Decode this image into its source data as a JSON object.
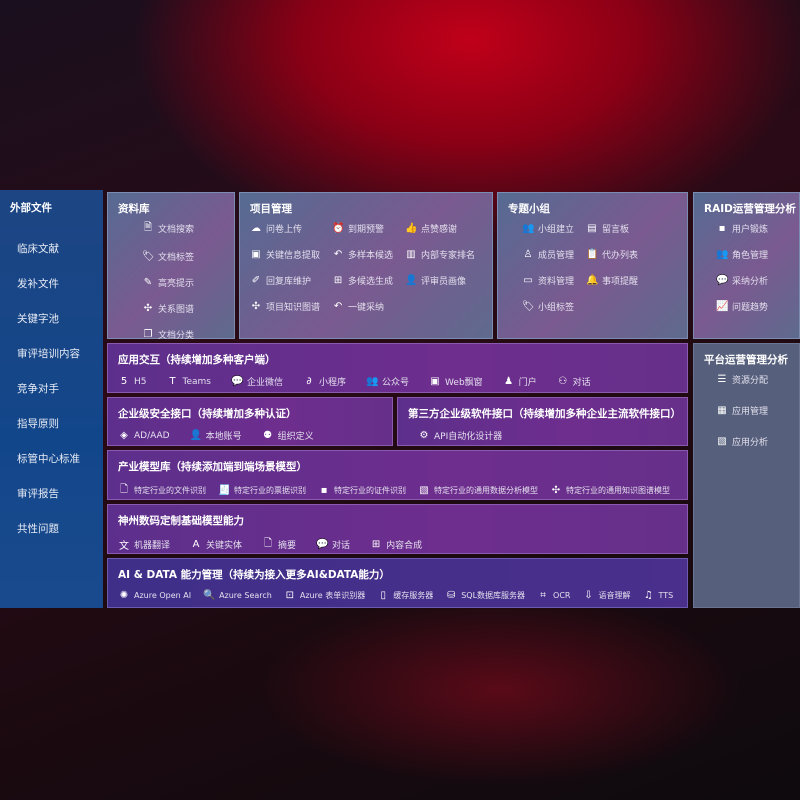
{
  "sidebar": {
    "title": "外部文件",
    "items": [
      "临床文献",
      "发补文件",
      "关键字池",
      "审评培训内容",
      "竞争对手",
      "指导原则",
      "标管中心标准",
      "审评报告",
      "共性问题"
    ]
  },
  "library": {
    "title": "资料库",
    "items": [
      {
        "icon": "doc-search-icon",
        "label": "文档搜索"
      },
      {
        "icon": "tag-icon",
        "label": "文档标签"
      },
      {
        "icon": "pen-icon",
        "label": "高亮提示"
      },
      {
        "icon": "graph-icon",
        "label": "关系图谱"
      },
      {
        "icon": "doc-copy-icon",
        "label": "文档分类"
      }
    ]
  },
  "project": {
    "title": "项目管理",
    "items": [
      {
        "icon": "upload-cloud-icon",
        "label": "问卷上传"
      },
      {
        "icon": "alarm-icon",
        "label": "到期预警"
      },
      {
        "icon": "thumbs-up-icon",
        "label": "点赞感谢"
      },
      {
        "icon": "window-icon",
        "label": "关键信息提取"
      },
      {
        "icon": "reply-icon",
        "label": "多样本候选"
      },
      {
        "icon": "ranking-icon",
        "label": "内部专家排名"
      },
      {
        "icon": "edit-icon",
        "label": "回复库维护"
      },
      {
        "icon": "puzzle-icon",
        "label": "多候选生成"
      },
      {
        "icon": "user-icon",
        "label": "评审员画像"
      },
      {
        "icon": "graph-icon",
        "label": "项目知识图谱"
      },
      {
        "icon": "reply-icon",
        "label": "一键采纳"
      }
    ]
  },
  "group": {
    "title": "专题小组",
    "items": [
      {
        "icon": "users-icon",
        "label": "小组建立"
      },
      {
        "icon": "bbs-icon",
        "label": "留言板"
      },
      {
        "icon": "user-add-icon",
        "label": "成员管理"
      },
      {
        "icon": "clipboard-icon",
        "label": "代办列表"
      },
      {
        "icon": "folder-icon",
        "label": "资料管理"
      },
      {
        "icon": "bell-icon",
        "label": "事项提醒"
      },
      {
        "icon": "tag-icon",
        "label": "小组标签"
      }
    ]
  },
  "raid": {
    "title": "RAID运营管理分析",
    "items": [
      {
        "icon": "id-card-icon",
        "label": "用户锻炼"
      },
      {
        "icon": "users-icon",
        "label": "角色管理"
      },
      {
        "icon": "qa-icon",
        "label": "采纳分析"
      },
      {
        "icon": "trend-icon",
        "label": "问题趋势"
      }
    ]
  },
  "platform": {
    "title": "平台运营管理分析",
    "items": [
      {
        "icon": "checklist-icon",
        "label": "资源分配"
      },
      {
        "icon": "apps-icon",
        "label": "应用管理"
      },
      {
        "icon": "chart-icon",
        "label": "应用分析"
      }
    ]
  },
  "app": {
    "title": "应用交互（持续增加多种客户端）",
    "items": [
      {
        "icon": "html5-icon",
        "label": "H5"
      },
      {
        "icon": "teams-icon",
        "label": "Teams"
      },
      {
        "icon": "wechat-icon",
        "label": "企业微信"
      },
      {
        "icon": "miniprogram-icon",
        "label": "小程序"
      },
      {
        "icon": "users-icon",
        "label": "公众号"
      },
      {
        "icon": "window-icon",
        "label": "Web飘窗"
      },
      {
        "icon": "portal-icon",
        "label": "门户"
      },
      {
        "icon": "chat-users-icon",
        "label": "对话"
      }
    ]
  },
  "security": {
    "title": "企业级安全接口（持续增加多种认证）",
    "items": [
      {
        "icon": "diamond-icon",
        "label": "AD/AAD"
      },
      {
        "icon": "user-icon",
        "label": "本地账号"
      },
      {
        "icon": "org-icon",
        "label": "组织定义"
      }
    ]
  },
  "thirdparty": {
    "title": "第三方企业级软件接口（持续增加多种企业主流软件接口）",
    "items": [
      {
        "icon": "gear-icon",
        "label": "API自动化设计器"
      }
    ]
  },
  "industry": {
    "title": "产业模型库（持续添加端到端场景模型）",
    "items": [
      {
        "icon": "doc-icon",
        "label": "特定行业的文件识别"
      },
      {
        "icon": "receipt-icon",
        "label": "特定行业的票据识别"
      },
      {
        "icon": "id-card-icon",
        "label": "特定行业的证件识别"
      },
      {
        "icon": "chart-icon",
        "label": "特定行业的通用数据分析模型"
      },
      {
        "icon": "graph-icon",
        "label": "特定行业的通用知识图谱模型"
      }
    ]
  },
  "base": {
    "title": "神州数码定制基础模型能力",
    "items": [
      {
        "icon": "translate-icon",
        "label": "机器翻译"
      },
      {
        "icon": "entity-icon",
        "label": "关键实体"
      },
      {
        "icon": "doc-icon",
        "label": "摘要"
      },
      {
        "icon": "chat-icon",
        "label": "对话"
      },
      {
        "icon": "puzzle-icon",
        "label": "内容合成"
      }
    ]
  },
  "ai": {
    "title": "AI & DATA 能力管理（持续为接入更多AI&DATA能力）",
    "items": [
      {
        "icon": "openai-icon",
        "label": "Azure Open AI"
      },
      {
        "icon": "search-doc-icon",
        "label": "Azure Search"
      },
      {
        "icon": "form-icon",
        "label": "Azure 表单识别器"
      },
      {
        "icon": "cache-icon",
        "label": "缓存服务器"
      },
      {
        "icon": "database-icon",
        "label": "SQL数据库服务器"
      },
      {
        "icon": "ocr-icon",
        "label": "OCR"
      },
      {
        "icon": "speech-icon",
        "label": "语音理解"
      },
      {
        "icon": "tts-icon",
        "label": "TTS"
      }
    ]
  }
}
